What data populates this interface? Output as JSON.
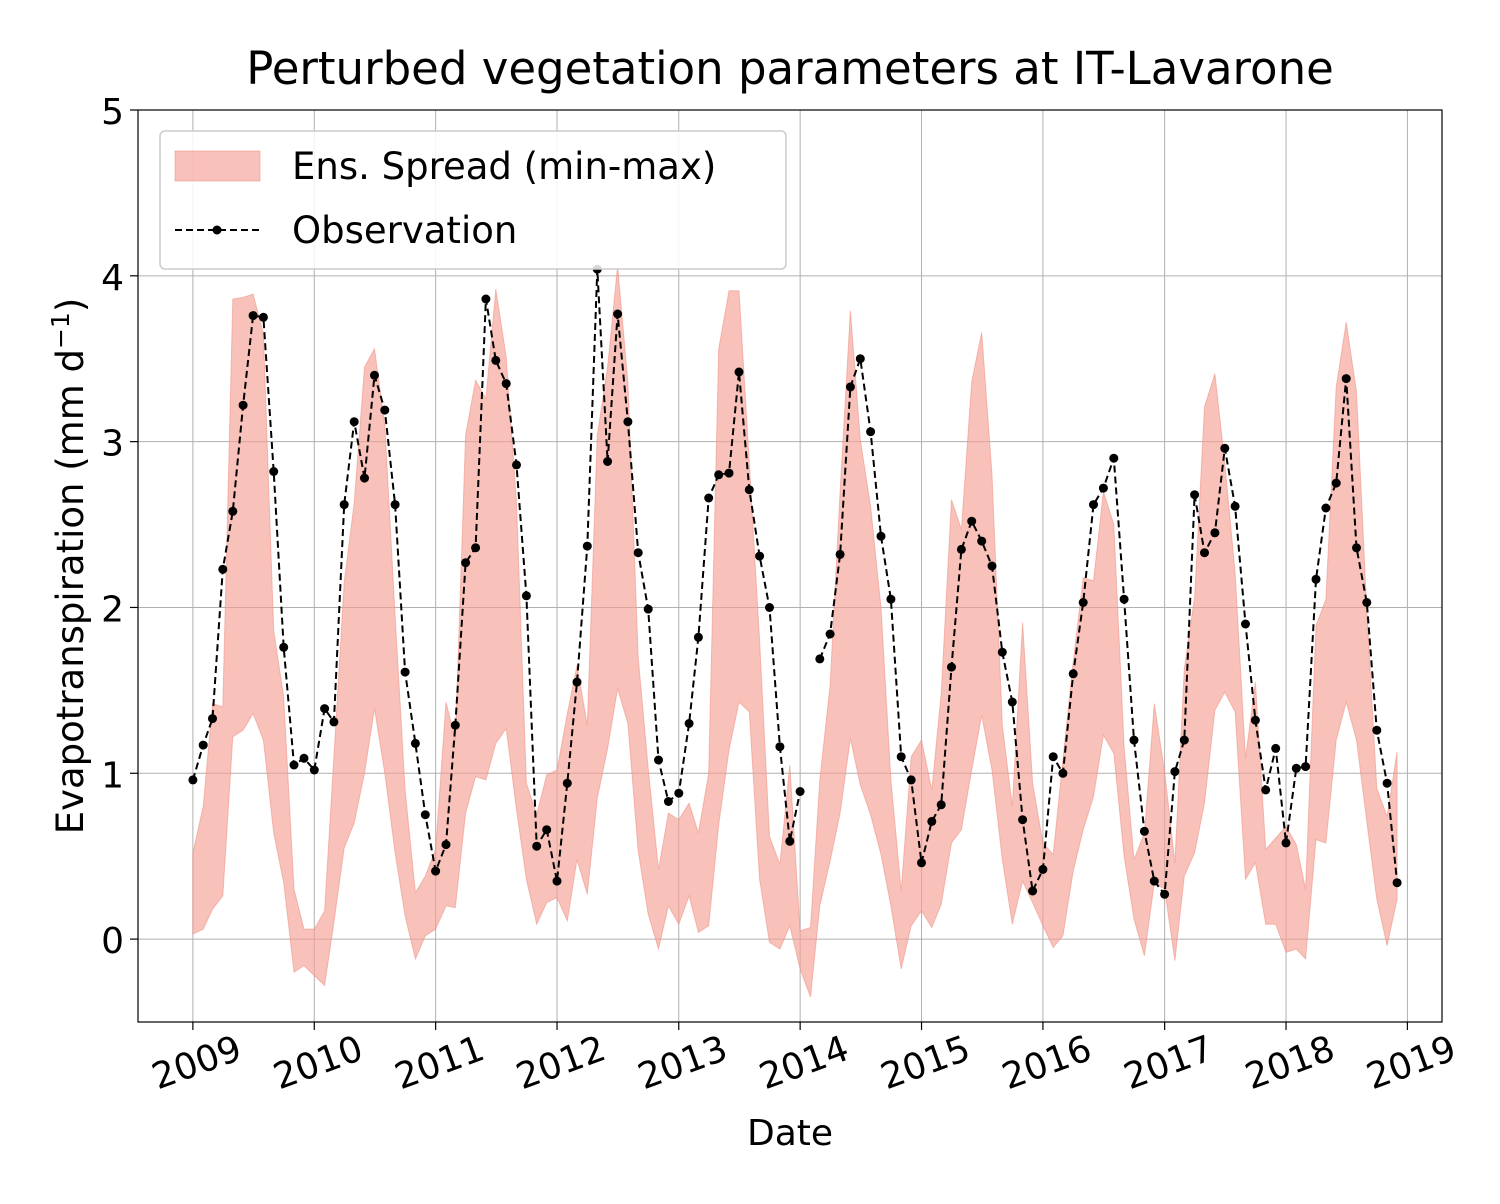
{
  "chart_data": {
    "type": "line",
    "title": "Perturbed vegetation parameters at IT-Lavarone",
    "xlabel": "Date",
    "ylabel_main": "Evapotranspiration  (mm d",
    "ylabel_exp": "−1",
    "ylabel_close": ")",
    "ylim": [
      -0.5,
      5
    ],
    "xlim": [
      "2008-07-20",
      "2019-04-15"
    ],
    "y_ticks": [
      0,
      1,
      2,
      3,
      4,
      5
    ],
    "x_ticks": [
      "2009",
      "2010",
      "2011",
      "2012",
      "2013",
      "2014",
      "2015",
      "2016",
      "2017",
      "2018",
      "2019"
    ],
    "grid": true,
    "legend_position": "top-left",
    "colors": {
      "spread_fill": "#f4a093",
      "spread_edge": "#ee8a7b",
      "observation": "#000000",
      "grid": "#b0b0b0"
    },
    "series": [
      {
        "name": "Ens. Spread (min-max)",
        "kind": "band",
        "x": [
          "2009-01",
          "2009-02",
          "2009-03",
          "2009-04",
          "2009-05",
          "2009-06",
          "2009-07",
          "2009-08",
          "2009-09",
          "2009-10",
          "2009-11",
          "2009-12",
          "2010-01",
          "2010-02",
          "2010-03",
          "2010-04",
          "2010-05",
          "2010-06",
          "2010-07",
          "2010-08",
          "2010-09",
          "2010-10",
          "2010-11",
          "2010-12",
          "2011-01",
          "2011-02",
          "2011-03",
          "2011-04",
          "2011-05",
          "2011-06",
          "2011-07",
          "2011-08",
          "2011-09",
          "2011-10",
          "2011-11",
          "2011-12",
          "2012-01",
          "2012-02",
          "2012-03",
          "2012-04",
          "2012-05",
          "2012-06",
          "2012-07",
          "2012-08",
          "2012-09",
          "2012-10",
          "2012-11",
          "2012-12",
          "2013-01",
          "2013-02",
          "2013-03",
          "2013-04",
          "2013-05",
          "2013-06",
          "2013-07",
          "2013-08",
          "2013-09",
          "2013-10",
          "2013-11",
          "2013-12",
          "2014-01",
          "2014-02",
          "2014-03",
          "2014-04",
          "2014-05",
          "2014-06",
          "2014-07",
          "2014-08",
          "2014-09",
          "2014-10",
          "2014-11",
          "2014-12",
          "2015-01",
          "2015-02",
          "2015-03",
          "2015-04",
          "2015-05",
          "2015-06",
          "2015-07",
          "2015-08",
          "2015-09",
          "2015-10",
          "2015-11",
          "2015-12",
          "2016-01",
          "2016-02",
          "2016-03",
          "2016-04",
          "2016-05",
          "2016-06",
          "2016-07",
          "2016-08",
          "2016-09",
          "2016-10",
          "2016-11",
          "2016-12",
          "2017-01",
          "2017-02",
          "2017-03",
          "2017-04",
          "2017-05",
          "2017-06",
          "2017-07",
          "2017-08",
          "2017-09",
          "2017-10",
          "2017-11",
          "2017-12",
          "2018-01",
          "2018-02",
          "2018-03",
          "2018-04",
          "2018-05",
          "2018-06",
          "2018-07",
          "2018-08",
          "2018-09",
          "2018-10",
          "2018-11",
          "2018-12"
        ],
        "low": [
          0.03,
          0.06,
          0.18,
          0.26,
          1.22,
          1.26,
          1.36,
          1.2,
          0.64,
          0.34,
          -0.2,
          -0.16,
          -0.22,
          -0.28,
          0.1,
          0.55,
          0.7,
          1.0,
          1.39,
          1.0,
          0.52,
          0.14,
          -0.12,
          0.02,
          0.06,
          0.2,
          0.19,
          0.76,
          0.98,
          0.96,
          1.18,
          1.27,
          0.78,
          0.36,
          0.09,
          0.22,
          0.25,
          0.11,
          0.48,
          0.27,
          0.85,
          1.15,
          1.51,
          1.3,
          0.53,
          0.15,
          -0.06,
          0.2,
          0.09,
          0.26,
          0.04,
          0.08,
          0.69,
          1.14,
          1.43,
          1.37,
          0.36,
          -0.02,
          -0.06,
          0.08,
          -0.18,
          -0.35,
          0.2,
          0.47,
          0.76,
          1.21,
          0.93,
          0.75,
          0.51,
          0.2,
          -0.18,
          0.08,
          0.17,
          0.07,
          0.21,
          0.58,
          0.66,
          1.02,
          1.35,
          1.02,
          0.48,
          0.09,
          0.35,
          0.22,
          0.08,
          -0.05,
          0.02,
          0.41,
          0.66,
          0.86,
          1.23,
          1.12,
          0.5,
          0.12,
          -0.1,
          0.34,
          0.3,
          -0.13,
          0.38,
          0.52,
          0.82,
          1.38,
          1.49,
          1.37,
          0.36,
          0.46,
          0.09,
          0.09,
          -0.08,
          -0.06,
          -0.12,
          0.6,
          0.58,
          1.2,
          1.43,
          1.2,
          0.71,
          0.24,
          -0.04,
          0.24
        ],
        "high": [
          0.52,
          0.8,
          1.42,
          1.4,
          3.86,
          3.87,
          3.89,
          3.65,
          1.86,
          1.46,
          0.3,
          0.06,
          0.06,
          0.17,
          1.1,
          2.15,
          2.63,
          3.45,
          3.56,
          3.1,
          1.95,
          0.9,
          0.28,
          0.38,
          0.54,
          1.43,
          1.2,
          3.04,
          3.37,
          3.26,
          3.92,
          3.51,
          2.63,
          0.94,
          0.75,
          0.99,
          1.02,
          1.36,
          1.65,
          1.29,
          3.04,
          3.45,
          4.06,
          3.36,
          1.7,
          1.03,
          0.42,
          0.76,
          0.72,
          0.82,
          0.64,
          1.0,
          3.56,
          3.91,
          3.91,
          2.87,
          1.8,
          0.62,
          0.45,
          1.05,
          0.05,
          0.07,
          0.96,
          1.53,
          2.7,
          3.79,
          3.01,
          2.61,
          2.0,
          0.96,
          0.29,
          1.1,
          1.2,
          0.9,
          1.48,
          2.65,
          2.47,
          3.36,
          3.66,
          2.8,
          1.29,
          0.8,
          1.91,
          0.94,
          0.58,
          0.51,
          1.08,
          1.67,
          2.18,
          2.16,
          2.7,
          2.5,
          1.16,
          0.48,
          0.64,
          1.42,
          1.01,
          0.46,
          1.63,
          2.06,
          3.21,
          3.41,
          2.87,
          2.21,
          1.09,
          1.55,
          0.54,
          0.61,
          0.68,
          0.57,
          0.3,
          1.89,
          2.05,
          3.33,
          3.72,
          3.3,
          1.98,
          0.91,
          0.74,
          1.13
        ]
      },
      {
        "name": "Observation",
        "kind": "line",
        "points": [
          [
            "2009-01",
            0.96
          ],
          [
            "2009-02",
            1.17
          ],
          [
            "2009-03",
            1.33
          ],
          [
            "2009-04",
            2.23
          ],
          [
            "2009-05",
            2.58
          ],
          [
            "2009-06",
            3.22
          ],
          [
            "2009-07",
            3.76
          ],
          [
            "2009-08",
            3.75
          ],
          [
            "2009-09",
            2.82
          ],
          [
            "2009-10",
            1.76
          ],
          [
            "2009-11",
            1.05
          ],
          [
            "2009-12",
            1.09
          ],
          [
            "2010-01",
            1.02
          ],
          [
            "2010-02",
            1.39
          ],
          [
            "2010-03",
            1.31
          ],
          [
            "2010-04",
            2.62
          ],
          [
            "2010-05",
            3.12
          ],
          [
            "2010-06",
            2.78
          ],
          [
            "2010-07",
            3.4
          ],
          [
            "2010-08",
            3.19
          ],
          [
            "2010-09",
            2.62
          ],
          [
            "2010-10",
            1.61
          ],
          [
            "2010-11",
            1.18
          ],
          [
            "2010-12",
            0.75
          ],
          [
            "2011-01",
            0.41
          ],
          [
            "2011-02",
            0.57
          ],
          [
            "2011-03",
            1.29
          ],
          [
            "2011-04",
            2.27
          ],
          [
            "2011-05",
            2.36
          ],
          [
            "2011-06",
            3.86
          ],
          [
            "2011-07",
            3.49
          ],
          [
            "2011-08",
            3.35
          ],
          [
            "2011-09",
            2.86
          ],
          [
            "2011-10",
            2.07
          ],
          [
            "2011-11",
            0.56
          ],
          [
            "2011-12",
            0.66
          ],
          [
            "2012-01",
            0.35
          ],
          [
            "2012-02",
            0.94
          ],
          [
            "2012-03",
            1.55
          ],
          [
            "2012-04",
            2.37
          ],
          [
            "2012-05",
            4.04
          ],
          [
            "2012-06",
            2.88
          ],
          [
            "2012-07",
            3.77
          ],
          [
            "2012-08",
            3.12
          ],
          [
            "2012-09",
            2.33
          ],
          [
            "2012-10",
            1.99
          ],
          [
            "2012-11",
            1.08
          ],
          [
            "2012-12",
            0.83
          ],
          [
            "2013-01",
            0.88
          ],
          [
            "2013-02",
            1.3
          ],
          [
            "2013-03",
            1.82
          ],
          [
            "2013-04",
            2.66
          ],
          [
            "2013-05",
            2.8
          ],
          [
            "2013-06",
            2.81
          ],
          [
            "2013-07",
            3.42
          ],
          [
            "2013-08",
            2.71
          ],
          [
            "2013-09",
            2.31
          ],
          [
            "2013-10",
            2.0
          ],
          [
            "2013-11",
            1.16
          ],
          [
            "2013-12",
            0.59
          ],
          [
            "2014-01",
            0.89
          ],
          null,
          [
            "2014-03",
            1.69
          ],
          [
            "2014-04",
            1.84
          ],
          [
            "2014-05",
            2.32
          ],
          [
            "2014-06",
            3.33
          ],
          [
            "2014-07",
            3.5
          ],
          [
            "2014-08",
            3.06
          ],
          [
            "2014-09",
            2.43
          ],
          [
            "2014-10",
            2.05
          ],
          [
            "2014-11",
            1.1
          ],
          [
            "2014-12",
            0.96
          ],
          [
            "2015-01",
            0.46
          ],
          [
            "2015-02",
            0.71
          ],
          [
            "2015-03",
            0.81
          ],
          [
            "2015-04",
            1.64
          ],
          [
            "2015-05",
            2.35
          ],
          [
            "2015-06",
            2.52
          ],
          [
            "2015-07",
            2.4
          ],
          [
            "2015-08",
            2.25
          ],
          [
            "2015-09",
            1.73
          ],
          [
            "2015-10",
            1.43
          ],
          [
            "2015-11",
            0.72
          ],
          [
            "2015-12",
            0.29
          ],
          [
            "2016-01",
            0.42
          ],
          [
            "2016-02",
            1.1
          ],
          [
            "2016-03",
            1.0
          ],
          [
            "2016-04",
            1.6
          ],
          [
            "2016-05",
            2.03
          ],
          [
            "2016-06",
            2.62
          ],
          [
            "2016-07",
            2.72
          ],
          [
            "2016-08",
            2.9
          ],
          [
            "2016-09",
            2.05
          ],
          [
            "2016-10",
            1.2
          ],
          [
            "2016-11",
            0.65
          ],
          [
            "2016-12",
            0.35
          ],
          [
            "2017-01",
            0.27
          ],
          [
            "2017-02",
            1.01
          ],
          [
            "2017-03",
            1.2
          ],
          [
            "2017-04",
            2.68
          ],
          [
            "2017-05",
            2.33
          ],
          [
            "2017-06",
            2.45
          ],
          [
            "2017-07",
            2.96
          ],
          [
            "2017-08",
            2.61
          ],
          [
            "2017-09",
            1.9
          ],
          [
            "2017-10",
            1.32
          ],
          [
            "2017-11",
            0.9
          ],
          [
            "2017-12",
            1.15
          ],
          [
            "2018-01",
            0.58
          ],
          [
            "2018-02",
            1.03
          ],
          [
            "2018-03",
            1.04
          ],
          [
            "2018-04",
            2.17
          ],
          [
            "2018-05",
            2.6
          ],
          [
            "2018-06",
            2.75
          ],
          [
            "2018-07",
            3.38
          ],
          [
            "2018-08",
            2.36
          ],
          [
            "2018-09",
            2.03
          ],
          [
            "2018-10",
            1.26
          ],
          [
            "2018-11",
            0.94
          ],
          [
            "2018-12",
            0.34
          ]
        ]
      }
    ]
  }
}
